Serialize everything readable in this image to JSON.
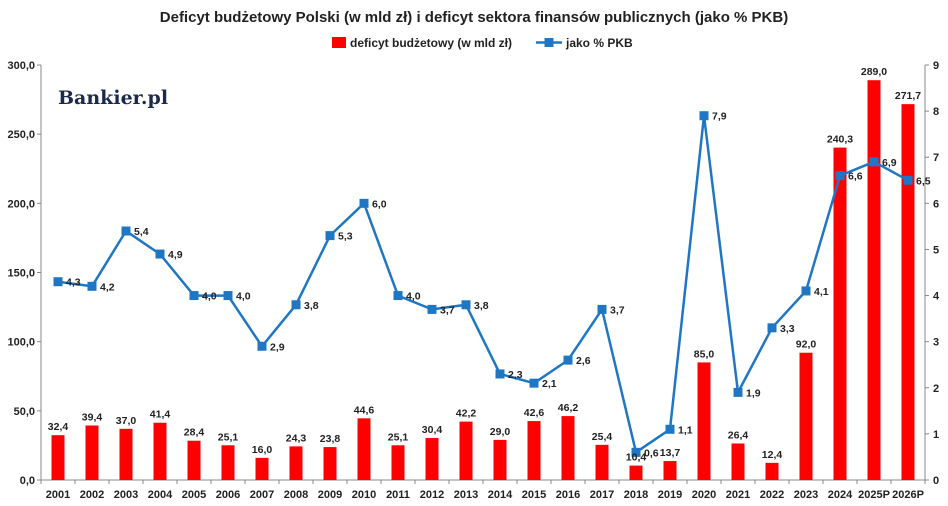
{
  "chart_data": {
    "type": "bar+line",
    "title": "Deficyt budżetowy Polski (w mld zł) i deficyt sektora finansów publicznych (jako % PKB)",
    "brand": "Bankier.pl",
    "categories": [
      "2001",
      "2002",
      "2003",
      "2004",
      "2005",
      "2006",
      "2007",
      "2008",
      "2009",
      "2010",
      "2011",
      "2012",
      "2013",
      "2014",
      "2015",
      "2016",
      "2017",
      "2018",
      "2019",
      "2020",
      "2021",
      "2022",
      "2023",
      "2024",
      "2025P",
      "2026P"
    ],
    "series": [
      {
        "name": "deficyt budżetowy (w mld zł)",
        "type": "bar",
        "axis": "left",
        "color": "#ff0000",
        "values": [
          32.4,
          39.4,
          37.0,
          41.4,
          28.4,
          25.1,
          16.0,
          24.3,
          23.8,
          44.6,
          25.1,
          30.4,
          42.2,
          29.0,
          42.6,
          46.2,
          25.4,
          10.4,
          13.7,
          85.0,
          26.4,
          12.4,
          92.0,
          240.3,
          289.0,
          271.7
        ],
        "labels": [
          "32,4",
          "39,4",
          "37,0",
          "41,4",
          "28,4",
          "25,1",
          "16,0",
          "24,3",
          "23,8",
          "44,6",
          "25,1",
          "30,4",
          "42,2",
          "29,0",
          "42,6",
          "46,2",
          "25,4",
          "10,4",
          "13,7",
          "85,0",
          "26,4",
          "12,4",
          "92,0",
          "240,3",
          "289,0",
          "271,7"
        ]
      },
      {
        "name": "jako % PKB",
        "type": "line",
        "axis": "right",
        "color": "#1f77c4",
        "values": [
          4.3,
          4.2,
          5.4,
          4.9,
          4.0,
          4.0,
          2.9,
          3.8,
          5.3,
          6.0,
          4.0,
          3.7,
          3.8,
          2.3,
          2.1,
          2.6,
          3.7,
          0.6,
          1.1,
          7.9,
          1.9,
          3.3,
          4.1,
          6.6,
          6.9,
          6.5
        ],
        "labels": [
          "4,3",
          "4,2",
          "5,4",
          "4,9",
          "4,0",
          "4,0",
          "2,9",
          "3,8",
          "5,3",
          "6,0",
          "4,0",
          "3,7",
          "3,8",
          "2,3",
          "2,1",
          "2,6",
          "3,7",
          "0,6",
          "1,1",
          "7,9",
          "1,9",
          "3,3",
          "4,1",
          "6,6",
          "6,9",
          "6,5"
        ]
      }
    ],
    "y_left": {
      "min": 0,
      "max": 300,
      "ticks": [
        "0,0",
        "50,0",
        "100,0",
        "150,0",
        "200,0",
        "250,0",
        "300,0"
      ]
    },
    "y_right": {
      "min": 0,
      "max": 9,
      "ticks": [
        "0",
        "1",
        "2",
        "3",
        "4",
        "5",
        "6",
        "7",
        "8",
        "9"
      ]
    },
    "grid": false,
    "legend_position": "top"
  }
}
